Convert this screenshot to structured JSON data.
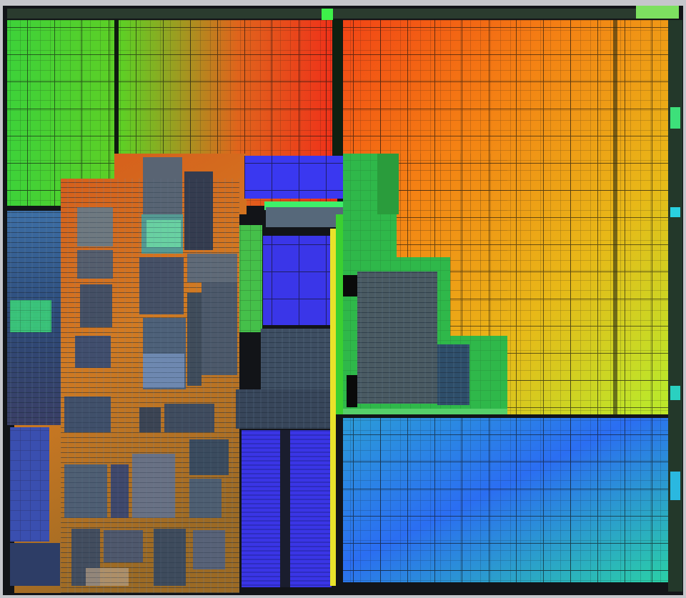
{
  "image": {
    "subject": "die-micrograph",
    "palette": {
      "frame": "#111318",
      "red": "#f02a10",
      "orange": "#f47a14",
      "yellow": "#e4cf1a",
      "green": "#3fcf2a",
      "lime": "#b8f03a",
      "cyan": "#21b8d8",
      "blue": "#2a6cff",
      "violet": "#3c38e8",
      "copper": "#d06b1e",
      "steel": "#4c6276"
    }
  }
}
